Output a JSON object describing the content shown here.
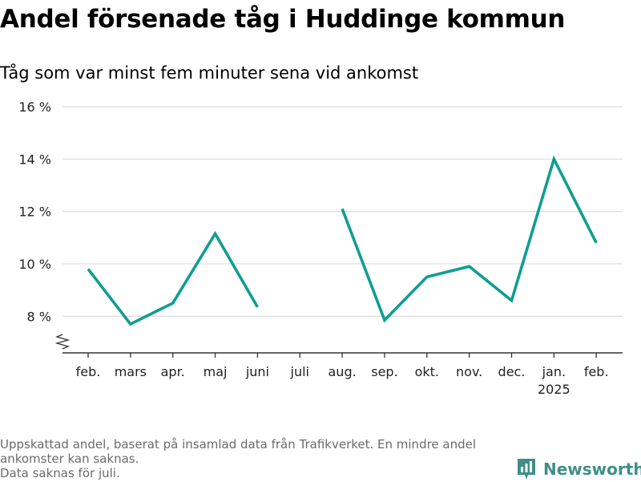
{
  "title": "Andel försenade tåg i Huddinge kommun",
  "subtitle": "Tåg som var minst fem minuter sena vid ankomst",
  "footnotes": [
    "Uppskattad andel, baserat på insamlad data från Trafikverket. En mindre andel ankomster kan saknas.",
    "Data saknas för juli."
  ],
  "brand": {
    "name": "Newsworthy",
    "icon": "newsworthy-logo-icon",
    "color": "#3f8f88"
  },
  "chart_data": {
    "type": "line",
    "categories": [
      "feb.",
      "mars",
      "apr.",
      "maj",
      "juni",
      "juli",
      "aug.",
      "sep.",
      "okt.",
      "nov.",
      "dec.",
      "jan.",
      "feb."
    ],
    "year_label": {
      "category_index": 11,
      "text": "2025"
    },
    "series": [
      {
        "values": [
          9.8,
          7.7,
          8.5,
          11.15,
          8.35,
          null,
          12.1,
          7.85,
          9.5,
          9.9,
          8.6,
          14.0,
          10.8
        ],
        "color": "#0f9e91"
      }
    ],
    "y_ticks": [
      {
        "value": 8,
        "label": "8 %"
      },
      {
        "value": 10,
        "label": "10 %"
      },
      {
        "value": 12,
        "label": "12 %"
      },
      {
        "value": 14,
        "label": "14 %"
      },
      {
        "value": 16,
        "label": "16 %"
      }
    ],
    "ylim": [
      6.6,
      16
    ],
    "y_axis_break": true,
    "grid": true
  }
}
